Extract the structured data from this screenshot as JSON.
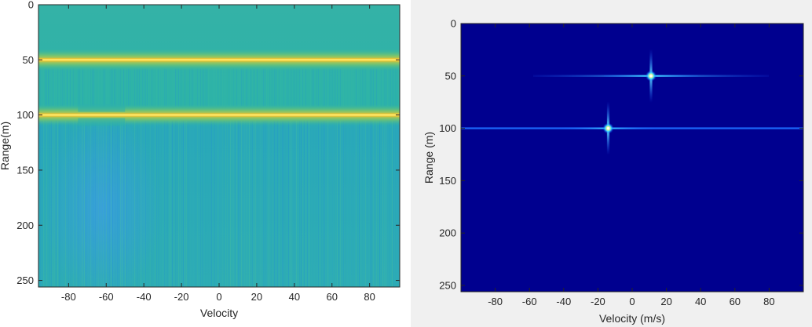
{
  "chart_data": [
    {
      "type": "heatmap",
      "title": "",
      "xlabel": "Velocity",
      "ylabel": "Range(m)",
      "xlim": [
        -96,
        96
      ],
      "ylim": [
        0,
        256
      ],
      "y_reversed": true,
      "x_ticks": [
        -80,
        -60,
        -40,
        -20,
        0,
        20,
        40,
        60,
        80
      ],
      "y_ticks": [
        0,
        50,
        100,
        150,
        200,
        250
      ],
      "colormap": "parula",
      "background_color": "#2cafb5",
      "description_values": {
        "strong_ranges_m": [
          50,
          100
        ],
        "weak_region_velocity": [
          -75,
          -50
        ]
      },
      "colors": {
        "ridge_core": "#fff37a",
        "ridge_band": "#f0c431",
        "base": "#2cb0b2",
        "low": "#3ea3db"
      }
    },
    {
      "type": "heatmap",
      "title": "",
      "xlabel": "Velocity (m/s)",
      "ylabel": "Range (m)",
      "xlim": [
        -100,
        100
      ],
      "ylim": [
        0,
        256
      ],
      "y_reversed": true,
      "x_ticks": [
        -80,
        -60,
        -40,
        -20,
        0,
        20,
        40,
        60,
        80
      ],
      "y_ticks": [
        0,
        50,
        100,
        150,
        200,
        250
      ],
      "colormap": "jet",
      "background_color": "#00008f",
      "targets": [
        {
          "velocity": 11,
          "range": 50
        },
        {
          "velocity": -14,
          "range": 100
        }
      ],
      "colors": {
        "streak": "#1f6cff",
        "halo": "#35d8ff",
        "core": "#ffffff"
      }
    }
  ]
}
